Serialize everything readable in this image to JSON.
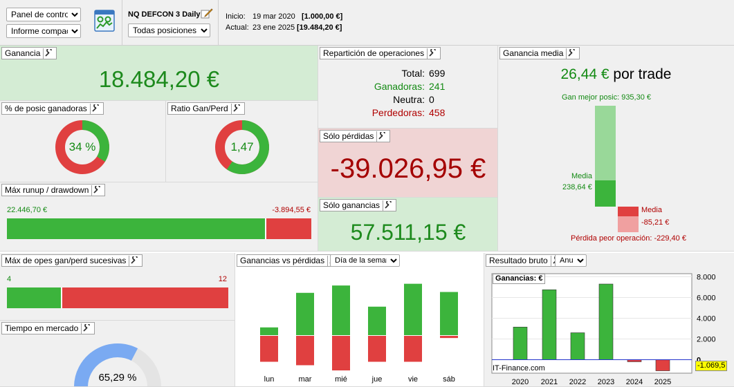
{
  "toolbar": {
    "view_select": "Panel de control",
    "report_select": "Informe compacto",
    "strategy_name": "NQ DEFCON 3 Daily",
    "positions_select": "Todas posiciones",
    "start_label": "Inicio:",
    "start_date": "19 mar 2020",
    "start_value": "[1.000,00 €]",
    "current_label": "Actual:",
    "current_date": "23 ene 2025",
    "current_value": "[19.484,20 €]"
  },
  "ganancia": {
    "title": "Ganancia",
    "value": "18.484,20 €"
  },
  "pct_ganadoras": {
    "title": "% de posic ganadoras",
    "value": "34 %",
    "fraction": 0.34
  },
  "ratio": {
    "title": "Ratio Gan/Perd",
    "value": "1,47",
    "fraction": 0.595
  },
  "reparticion": {
    "title": "Repartición de operaciones",
    "total_label": "Total:",
    "total": "699",
    "win_label": "Ganadoras:",
    "win": "241",
    "neutral_label": "Neutra:",
    "neutral": "0",
    "loss_label": "Perdedoras:",
    "loss": "458"
  },
  "solo_perdidas": {
    "title": "Sólo pérdidas",
    "value": "-39.026,95 €"
  },
  "solo_ganancias": {
    "title": "Sólo ganancias",
    "value": "57.511,15 €"
  },
  "ganancia_media": {
    "title": "Ganancia media",
    "value": "26,44 €",
    "suffix": "por trade",
    "best_label": "Gan mejor posic: 935,30 €",
    "media_label": "Media",
    "media_value": "238,64 €",
    "loss_media_label": "Media",
    "loss_media_value": "-85,21 €",
    "worst_label": "Pérdida peor operación: -229,40 €"
  },
  "runup": {
    "title": "Máx runup / drawdown",
    "runup": "22.446,70 €",
    "drawdown": "-3.894,55 €",
    "runup_fraction": 0.852
  },
  "sucesivas": {
    "title": "Máx de opes gan/perd sucesivas",
    "wins": "4",
    "losses": "12",
    "win_fraction": 0.25
  },
  "tiempo": {
    "title": "Tiempo en mercado",
    "value": "65,29 %",
    "fraction": 0.6529
  },
  "gan_vs_perd": {
    "title": "Ganancias vs pérdidas",
    "select": "Día de la semana"
  },
  "resultado": {
    "title": "Resultado bruto",
    "select": "Anual",
    "chart_label": "Ganancias: €",
    "watermark": "IT-Finance.com",
    "last_value": "-1.069,5"
  },
  "colors": {
    "green": "#3cb43c",
    "red": "#e04040",
    "blue": "#7aaaf2"
  },
  "chart_data": [
    {
      "type": "bar",
      "categories": [
        "lun",
        "mar",
        "mié",
        "jue",
        "vie",
        "sáb"
      ],
      "series": [
        {
          "values": [
            1800,
            9800,
            11500,
            6600,
            11900,
            10000
          ]
        },
        {
          "values": [
            -6000,
            -6800,
            -8000,
            -6000,
            -6000,
            -500
          ]
        }
      ]
    },
    {
      "type": "bar",
      "categories": [
        "2020",
        "2021",
        "2022",
        "2023",
        "2024",
        "2025"
      ],
      "values": [
        3150,
        6750,
        2600,
        7300,
        -200,
        -1069.5
      ],
      "ylim": [
        -1300,
        8300
      ],
      "yticks": [
        "8.000",
        "6.000",
        "4.000",
        "2.000",
        "0"
      ]
    }
  ]
}
